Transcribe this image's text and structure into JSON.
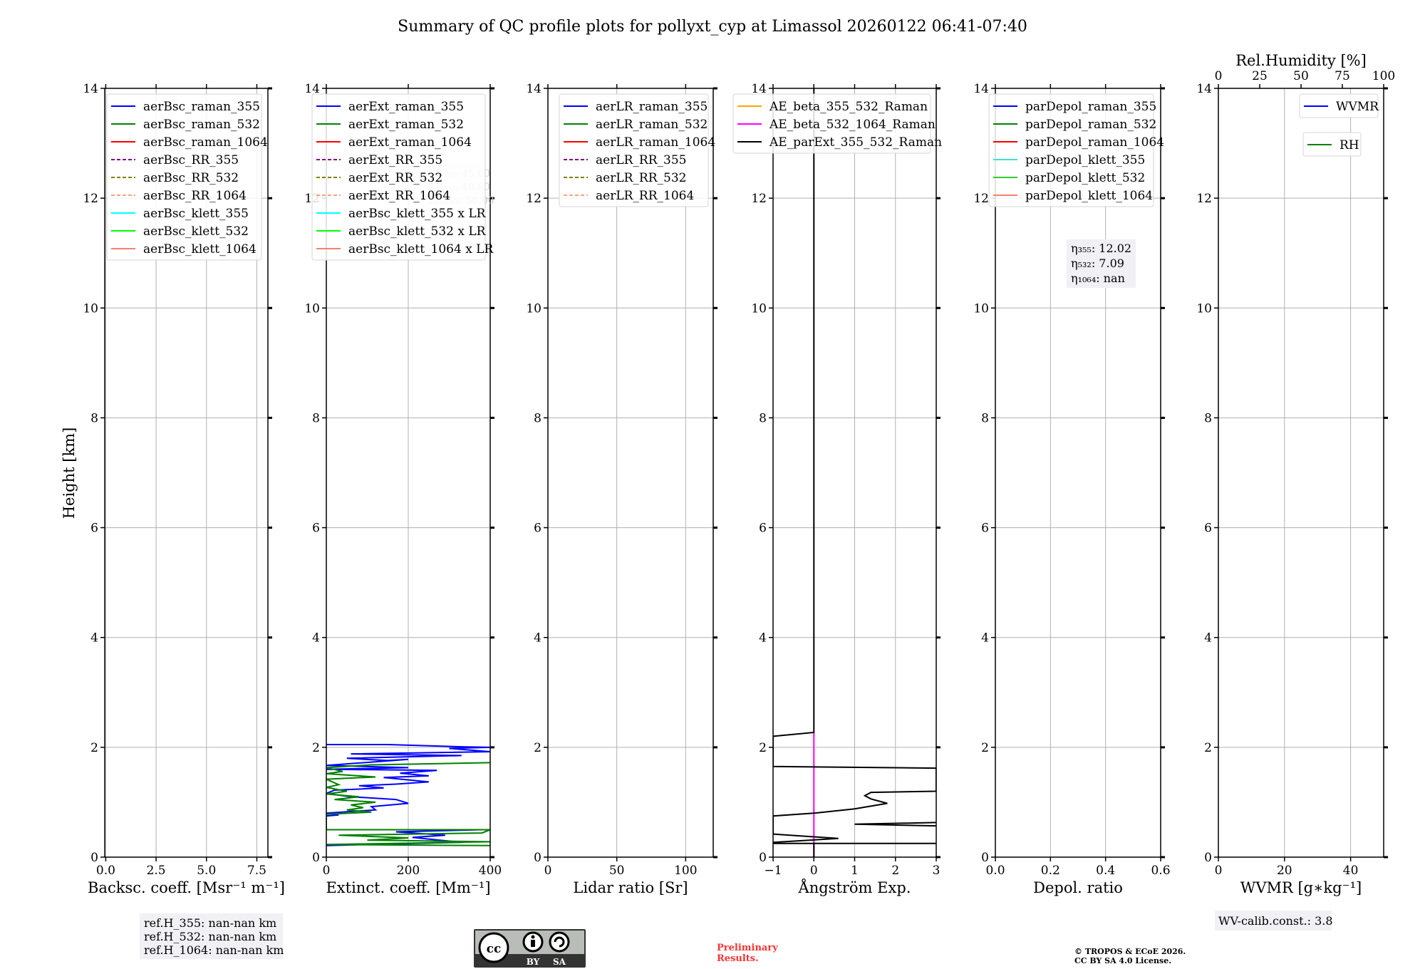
{
  "title": "Summary of QC profile plots for pollyxt_cyp at Limassol 20260122 06:41-07:40",
  "ylabel": "Height [km]",
  "chart_data": {
    "type": "line",
    "ylim": [
      0,
      14
    ],
    "yticks": [
      0,
      2,
      4,
      6,
      8,
      10,
      12,
      14
    ],
    "yticklabels": [
      "0",
      "2",
      "4",
      "6",
      "8",
      "10",
      "12",
      "14"
    ],
    "grid": true,
    "panels": [
      {
        "xlabel": "Backsc. coeff. [Msr⁻¹ m⁻¹]",
        "xlim": [
          -0.05,
          8.05
        ],
        "xticks": [
          0,
          2.5,
          5,
          7.5
        ],
        "xticklabels": [
          "0.0",
          "2.5",
          "5.0",
          "7.5"
        ],
        "legend": [
          {
            "label": "aerBsc_raman_355",
            "color": "#0000ff",
            "dash": false
          },
          {
            "label": "aerBsc_raman_532",
            "color": "#008000",
            "dash": false
          },
          {
            "label": "aerBsc_raman_1064",
            "color": "#ff0000",
            "dash": false
          },
          {
            "label": "aerBsc_RR_355",
            "color": "#800080",
            "dash": true
          },
          {
            "label": "aerBsc_RR_532",
            "color": "#808000",
            "dash": true
          },
          {
            "label": "aerBsc_RR_1064",
            "color": "#ffa07a",
            "dash": true
          },
          {
            "label": "aerBsc_klett_355",
            "color": "#00ffff",
            "dash": false
          },
          {
            "label": "aerBsc_klett_532",
            "color": "#00ff00",
            "dash": false
          },
          {
            "label": "aerBsc_klett_1064",
            "color": "#fa8072",
            "dash": false
          }
        ],
        "series": []
      },
      {
        "xlabel": "Extinct. coeff. [Mm⁻¹]",
        "xlim": [
          0,
          400
        ],
        "xticks": [
          0,
          200,
          400
        ],
        "xticklabels": [
          "0",
          "200",
          "400"
        ],
        "legend": [
          {
            "label": "aerExt_raman_355",
            "color": "#0000ff",
            "dash": false
          },
          {
            "label": "aerExt_raman_532",
            "color": "#008000",
            "dash": false
          },
          {
            "label": "aerExt_raman_1064",
            "color": "#ff0000",
            "dash": false
          },
          {
            "label": "aerExt_RR_355",
            "color": "#800080",
            "dash": true
          },
          {
            "label": "aerExt_RR_532",
            "color": "#808000",
            "dash": true
          },
          {
            "label": "aerExt_RR_1064",
            "color": "#ffa07a",
            "dash": true
          },
          {
            "label": "aerBsc_klett_355 x LR",
            "color": "#00ffff",
            "dash": false
          },
          {
            "label": "aerBsc_klett_532 x LR",
            "color": "#00ff00",
            "dash": false
          },
          {
            "label": "aerBsc_klett_1064 x LR",
            "color": "#fa8072",
            "dash": false
          }
        ],
        "series": [
          {
            "name": "aerExt_raman_355",
            "color": "#0000ff",
            "points": [
              [
                0,
                2.05
              ],
              [
                150,
                2.05
              ],
              [
                330,
                2.01
              ],
              [
                400,
                2.0
              ],
              [
                300,
                1.98
              ],
              [
                400,
                1.92
              ],
              [
                60,
                1.88
              ],
              [
                330,
                1.85
              ],
              [
                50,
                1.8
              ],
              [
                150,
                1.76
              ],
              [
                200,
                1.78
              ],
              [
                0,
                1.67
              ],
              [
                200,
                1.63
              ],
              [
                0,
                1.6
              ],
              [
                270,
                1.58
              ],
              [
                180,
                1.53
              ],
              [
                250,
                1.48
              ],
              [
                140,
                1.45
              ],
              [
                250,
                1.37
              ],
              [
                170,
                1.33
              ],
              [
                80,
                1.3
              ],
              [
                140,
                1.26
              ],
              [
                20,
                1.22
              ],
              [
                0,
                1.16
              ],
              [
                60,
                1.1
              ],
              [
                170,
                1.05
              ],
              [
                200,
                0.98
              ],
              [
                110,
                0.92
              ],
              [
                120,
                0.86
              ],
              [
                0,
                0.8
              ],
              [
                30,
                0.77
              ],
              [
                0,
                0.75
              ],
              [
                0,
                0.5
              ],
              [
                380,
                0.5
              ],
              [
                170,
                0.46
              ],
              [
                290,
                0.4
              ],
              [
                210,
                0.36
              ],
              [
                260,
                0.32
              ],
              [
                330,
                0.27
              ],
              [
                160,
                0.24
              ],
              [
                0,
                0.21
              ]
            ]
          },
          {
            "name": "aerExt_raman_532",
            "color": "#008000",
            "points": [
              [
                400,
                1.72
              ],
              [
                110,
                1.68
              ],
              [
                0,
                1.63
              ],
              [
                40,
                1.56
              ],
              [
                0,
                1.52
              ],
              [
                120,
                1.46
              ],
              [
                0,
                1.42
              ],
              [
                30,
                1.32
              ],
              [
                0,
                1.27
              ],
              [
                50,
                1.2
              ],
              [
                0,
                1.15
              ],
              [
                80,
                1.1
              ],
              [
                20,
                1.05
              ],
              [
                120,
                1.0
              ],
              [
                60,
                0.95
              ],
              [
                90,
                0.9
              ],
              [
                50,
                0.86
              ],
              [
                110,
                0.82
              ],
              [
                0,
                0.78
              ],
              [
                0,
                0.5
              ],
              [
                400,
                0.5
              ],
              [
                380,
                0.44
              ],
              [
                30,
                0.4
              ],
              [
                200,
                0.35
              ],
              [
                100,
                0.31
              ],
              [
                400,
                0.28
              ],
              [
                0,
                0.23
              ],
              [
                400,
                0.21
              ]
            ]
          }
        ],
        "annotation": [
          "LR₃₅₅: 45.00",
          "LR₅₃₂: 40.00",
          "LR₁₀₆₄: 50.00"
        ]
      },
      {
        "xlabel": "Lidar ratio [Sr]",
        "xlim": [
          0,
          120
        ],
        "xticks": [
          0,
          50,
          100
        ],
        "xticklabels": [
          "0",
          "50",
          "100"
        ],
        "legend": [
          {
            "label": "aerLR_raman_355",
            "color": "#0000ff",
            "dash": false
          },
          {
            "label": "aerLR_raman_532",
            "color": "#008000",
            "dash": false
          },
          {
            "label": "aerLR_raman_1064",
            "color": "#ff0000",
            "dash": false
          },
          {
            "label": "aerLR_RR_355",
            "color": "#800080",
            "dash": true
          },
          {
            "label": "aerLR_RR_532",
            "color": "#808000",
            "dash": true
          },
          {
            "label": "aerLR_RR_1064",
            "color": "#ffa07a",
            "dash": true
          }
        ],
        "series": []
      },
      {
        "xlabel": "Ångström Exp.",
        "xlim": [
          -1,
          3
        ],
        "xticks": [
          -1,
          0,
          1,
          2,
          3
        ],
        "xticklabels": [
          "−1",
          "0",
          "1",
          "2",
          "3"
        ],
        "legend": [
          {
            "label": "AE_beta_355_532_Raman",
            "color": "#ffa500",
            "dash": false
          },
          {
            "label": "AE_beta_532_1064_Raman",
            "color": "#ff00ff",
            "dash": false
          },
          {
            "label": "AE_parExt_355_532_Raman",
            "color": "#000000",
            "dash": false
          }
        ],
        "series": [
          {
            "name": "AE_beta_532_1064_Raman",
            "color": "#ff00ff",
            "points": [
              [
                0,
                2.27
              ],
              [
                0,
                0
              ]
            ]
          },
          {
            "name": "AE_parExt_355_532_Raman",
            "color": "#000000",
            "points": [
              [
                0,
                14
              ],
              [
                0,
                2.27
              ],
              [
                -1,
                2.2
              ],
              [
                -1,
                1.65
              ],
              [
                3,
                1.62
              ],
              [
                3,
                1.2
              ],
              [
                1.4,
                1.18
              ],
              [
                1.25,
                1.12
              ],
              [
                1.4,
                1.06
              ],
              [
                1.8,
                0.98
              ],
              [
                1.0,
                0.88
              ],
              [
                0,
                0.8
              ],
              [
                -1,
                0.75
              ],
              [
                -1,
                0.42
              ],
              [
                0.6,
                0.34
              ],
              [
                -1,
                0.27
              ],
              [
                -1,
                0.25
              ],
              [
                3,
                0.25
              ],
              [
                0,
                0.25
              ],
              [
                0,
                0
              ]
            ]
          },
          {
            "name": "AE_parExt_355_532_Raman",
            "color": "#000000",
            "points": [
              [
                3,
                0.63
              ],
              [
                1,
                0.6
              ],
              [
                3,
                0.57
              ]
            ]
          }
        ]
      },
      {
        "xlabel": "Depol. ratio",
        "xlim": [
          0,
          0.6
        ],
        "xticks": [
          0,
          0.2,
          0.4,
          0.6
        ],
        "xticklabels": [
          "0.0",
          "0.2",
          "0.4",
          "0.6"
        ],
        "legend": [
          {
            "label": "parDepol_raman_355",
            "color": "#0000ff",
            "dash": false
          },
          {
            "label": "parDepol_raman_532",
            "color": "#008000",
            "dash": false
          },
          {
            "label": "parDepol_raman_1064",
            "color": "#ff0000",
            "dash": false
          },
          {
            "label": "parDepol_klett_355",
            "color": "#40e0d0",
            "dash": false
          },
          {
            "label": "parDepol_klett_532",
            "color": "#32cd32",
            "dash": false
          },
          {
            "label": "parDepol_klett_1064",
            "color": "#fa8072",
            "dash": false
          }
        ],
        "series": [],
        "annotation": [
          "η₃₅₅: 12.02",
          "η₅₃₂: 7.09",
          "η₁₀₆₄: nan"
        ]
      },
      {
        "xlabel": "WVMR [g∗kg⁻¹]",
        "xlim": [
          0,
          50
        ],
        "xticks": [
          0,
          20,
          40
        ],
        "xticklabels": [
          "0",
          "20",
          "40"
        ],
        "legend": [
          {
            "label": "WVMR",
            "color": "#0000ff",
            "dash": false
          }
        ],
        "legend2": [
          {
            "label": "RH",
            "color": "#008000",
            "dash": false
          }
        ],
        "top_xlabel": "Rel.Humidity [%]",
        "top_xlim": [
          0,
          100
        ],
        "top_xticks": [
          0,
          25,
          50,
          75,
          100
        ],
        "top_xticklabels": [
          "0",
          "25",
          "50",
          "75",
          "100"
        ],
        "series": []
      }
    ]
  },
  "ref_heights": [
    "ref.H_355: nan-nan km",
    "ref.H_532: nan-nan km",
    "ref.H_1064: nan-nan km"
  ],
  "wv_calib": "WV-calib.const.: 3.8",
  "license_logo": {
    "cc": "cc",
    "by": "BY",
    "sa": "SA"
  },
  "preliminary": [
    "Preliminary",
    "Results."
  ],
  "copyright": [
    "© TROPOS & ECoE 2026.",
    "CC BY SA 4.0 License."
  ]
}
